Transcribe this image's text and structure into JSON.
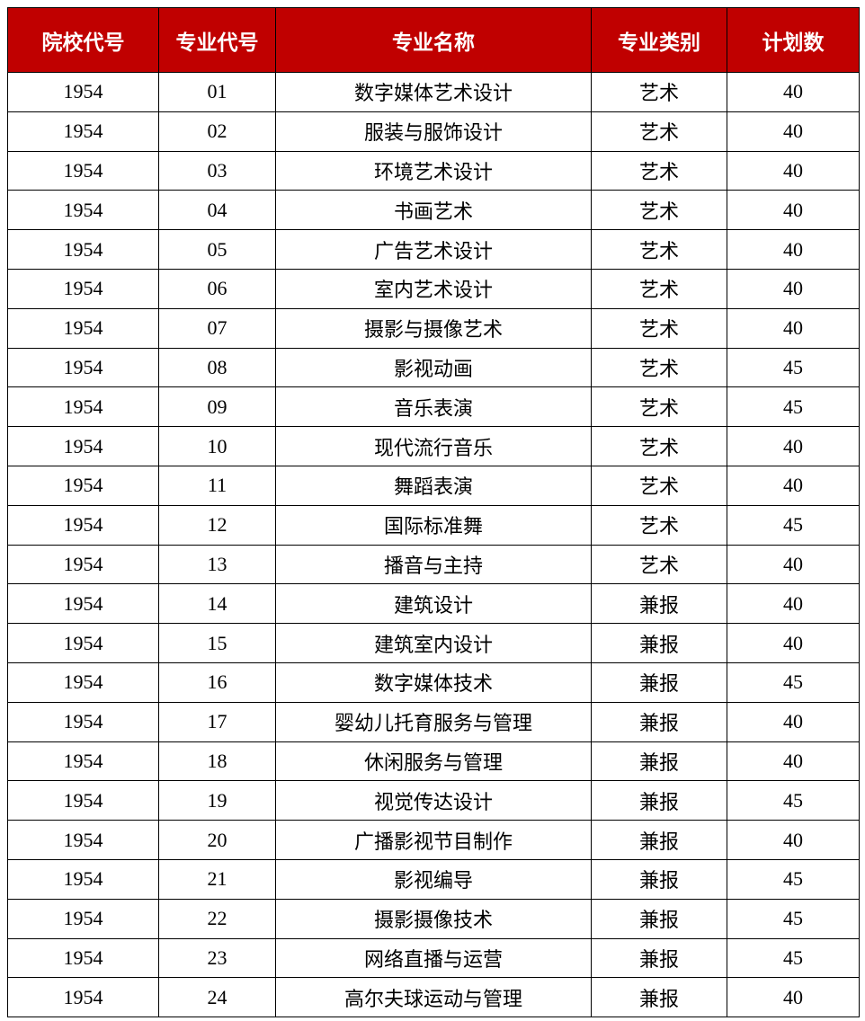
{
  "table": {
    "header": [
      "院校代号",
      "专业代号",
      "专业名称",
      "专业类别",
      "计划数"
    ],
    "rows": [
      [
        "1954",
        "01",
        "数字媒体艺术设计",
        "艺术",
        "40"
      ],
      [
        "1954",
        "02",
        "服装与服饰设计",
        "艺术",
        "40"
      ],
      [
        "1954",
        "03",
        "环境艺术设计",
        "艺术",
        "40"
      ],
      [
        "1954",
        "04",
        "书画艺术",
        "艺术",
        "40"
      ],
      [
        "1954",
        "05",
        "广告艺术设计",
        "艺术",
        "40"
      ],
      [
        "1954",
        "06",
        "室内艺术设计",
        "艺术",
        "40"
      ],
      [
        "1954",
        "07",
        "摄影与摄像艺术",
        "艺术",
        "40"
      ],
      [
        "1954",
        "08",
        "影视动画",
        "艺术",
        "45"
      ],
      [
        "1954",
        "09",
        "音乐表演",
        "艺术",
        "45"
      ],
      [
        "1954",
        "10",
        "现代流行音乐",
        "艺术",
        "40"
      ],
      [
        "1954",
        "11",
        "舞蹈表演",
        "艺术",
        "40"
      ],
      [
        "1954",
        "12",
        "国际标准舞",
        "艺术",
        "45"
      ],
      [
        "1954",
        "13",
        "播音与主持",
        "艺术",
        "40"
      ],
      [
        "1954",
        "14",
        "建筑设计",
        "兼报",
        "40"
      ],
      [
        "1954",
        "15",
        "建筑室内设计",
        "兼报",
        "40"
      ],
      [
        "1954",
        "16",
        "数字媒体技术",
        "兼报",
        "45"
      ],
      [
        "1954",
        "17",
        "婴幼儿托育服务与管理",
        "兼报",
        "40"
      ],
      [
        "1954",
        "18",
        "休闲服务与管理",
        "兼报",
        "40"
      ],
      [
        "1954",
        "19",
        "视觉传达设计",
        "兼报",
        "45"
      ],
      [
        "1954",
        "20",
        "广播影视节目制作",
        "兼报",
        "40"
      ],
      [
        "1954",
        "21",
        "影视编导",
        "兼报",
        "45"
      ],
      [
        "1954",
        "22",
        "摄影摄像技术",
        "兼报",
        "45"
      ],
      [
        "1954",
        "23",
        "网络直播与运营",
        "兼报",
        "45"
      ],
      [
        "1954",
        "24",
        "高尔夫球运动与管理",
        "兼报",
        "40"
      ]
    ]
  }
}
